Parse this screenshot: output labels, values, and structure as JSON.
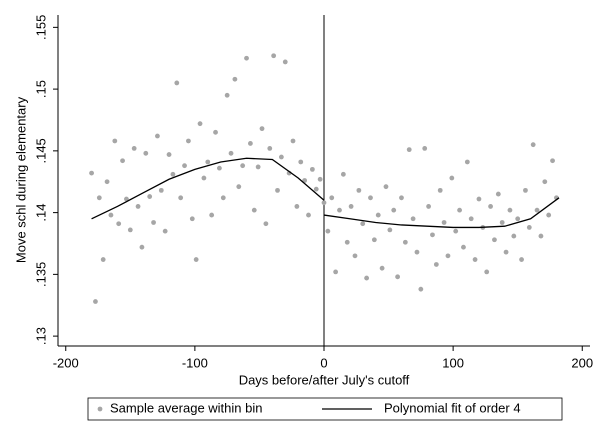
{
  "chart_data": {
    "type": "scatter",
    "xlabel": "Days before/after July's cutoff",
    "ylabel": "Move schl during elementary",
    "xlim": [
      -206,
      206
    ],
    "ylim": [
      0.1292,
      0.156
    ],
    "xticks": [
      -200,
      -100,
      0,
      100,
      200
    ],
    "yticks": [
      {
        "value": 0.13,
        "label": ".13"
      },
      {
        "value": 0.135,
        "label": ".135"
      },
      {
        "value": 0.14,
        "label": ".14"
      },
      {
        "value": 0.145,
        "label": ".145"
      },
      {
        "value": 0.15,
        "label": ".15"
      },
      {
        "value": 0.155,
        "label": ".155"
      }
    ],
    "vline": 0,
    "grid": false,
    "legend": "bottom",
    "series": [
      {
        "name": "Sample average within bin",
        "type": "scatter",
        "color": "#a6a6a6",
        "x": [
          -180,
          -177,
          -174,
          -171,
          -168,
          -165,
          -162,
          -159,
          -156,
          -153,
          -150,
          -147,
          -144,
          -141,
          -138,
          -135,
          -132,
          -129,
          -126,
          -123,
          -120,
          -117,
          -114,
          -111,
          -108,
          -105,
          -102,
          -99,
          -96,
          -93,
          -90,
          -87,
          -84,
          -81,
          -78,
          -75,
          -72,
          -69,
          -66,
          -63,
          -60,
          -57,
          -54,
          -51,
          -48,
          -45,
          -42,
          -39,
          -36,
          -33,
          -30,
          -27,
          -24,
          -21,
          -18,
          -15,
          -12,
          -9,
          -6,
          -3,
          0,
          3,
          6,
          9,
          12,
          15,
          18,
          21,
          24,
          27,
          30,
          33,
          36,
          39,
          42,
          45,
          48,
          51,
          54,
          57,
          60,
          63,
          66,
          69,
          72,
          75,
          78,
          81,
          84,
          87,
          90,
          93,
          96,
          99,
          102,
          105,
          108,
          111,
          114,
          117,
          120,
          123,
          126,
          129,
          132,
          135,
          138,
          141,
          144,
          147,
          150,
          153,
          156,
          159,
          162,
          165,
          168,
          171,
          174,
          177,
          180
        ],
        "values": [
          0.1432,
          0.1328,
          0.1412,
          0.1362,
          0.1425,
          0.1398,
          0.1458,
          0.1391,
          0.1442,
          0.1411,
          0.1386,
          0.1452,
          0.1405,
          0.1372,
          0.1448,
          0.1413,
          0.1392,
          0.1462,
          0.1418,
          0.1385,
          0.1447,
          0.1431,
          0.1505,
          0.1412,
          0.1438,
          0.1458,
          0.1395,
          0.1362,
          0.1472,
          0.1428,
          0.1441,
          0.1398,
          0.1465,
          0.1436,
          0.1412,
          0.1495,
          0.1448,
          0.1508,
          0.1421,
          0.1438,
          0.1525,
          0.1456,
          0.1402,
          0.1437,
          0.1468,
          0.1391,
          0.1452,
          0.1527,
          0.1418,
          0.1445,
          0.1522,
          0.1432,
          0.1458,
          0.1405,
          0.1441,
          0.1426,
          0.1398,
          0.1435,
          0.1419,
          0.1427,
          0.1408,
          0.1385,
          0.1412,
          0.1352,
          0.1402,
          0.1431,
          0.1376,
          0.1405,
          0.1365,
          0.1418,
          0.1391,
          0.1347,
          0.1412,
          0.1378,
          0.1398,
          0.1355,
          0.1421,
          0.1386,
          0.1402,
          0.1348,
          0.1412,
          0.1376,
          0.1451,
          0.1395,
          0.1368,
          0.1338,
          0.1452,
          0.1405,
          0.1382,
          0.1358,
          0.1418,
          0.1392,
          0.1365,
          0.1428,
          0.1385,
          0.1402,
          0.1372,
          0.1441,
          0.1395,
          0.1362,
          0.1411,
          0.1388,
          0.1352,
          0.1405,
          0.1378,
          0.1415,
          0.1392,
          0.1368,
          0.1402,
          0.1381,
          0.1395,
          0.1362,
          0.1418,
          0.1388,
          0.1455,
          0.1402,
          0.1381,
          0.1425,
          0.1398,
          0.1442,
          0.1412
        ]
      },
      {
        "name": "Polynomial fit of order 4",
        "type": "line",
        "color": "#000000",
        "x": [
          -180,
          -160,
          -140,
          -120,
          -100,
          -80,
          -60,
          -40,
          -20,
          0,
          0,
          0,
          20,
          40,
          60,
          80,
          100,
          120,
          140,
          160,
          182
        ],
        "values": [
          0.1395,
          0.1405,
          0.1416,
          0.1427,
          0.1435,
          0.1441,
          0.1444,
          0.1443,
          0.1428,
          0.141,
          null,
          0.1398,
          0.1395,
          0.1392,
          0.139,
          0.1389,
          0.1388,
          0.1388,
          0.1389,
          0.1395,
          0.1412
        ]
      }
    ]
  }
}
